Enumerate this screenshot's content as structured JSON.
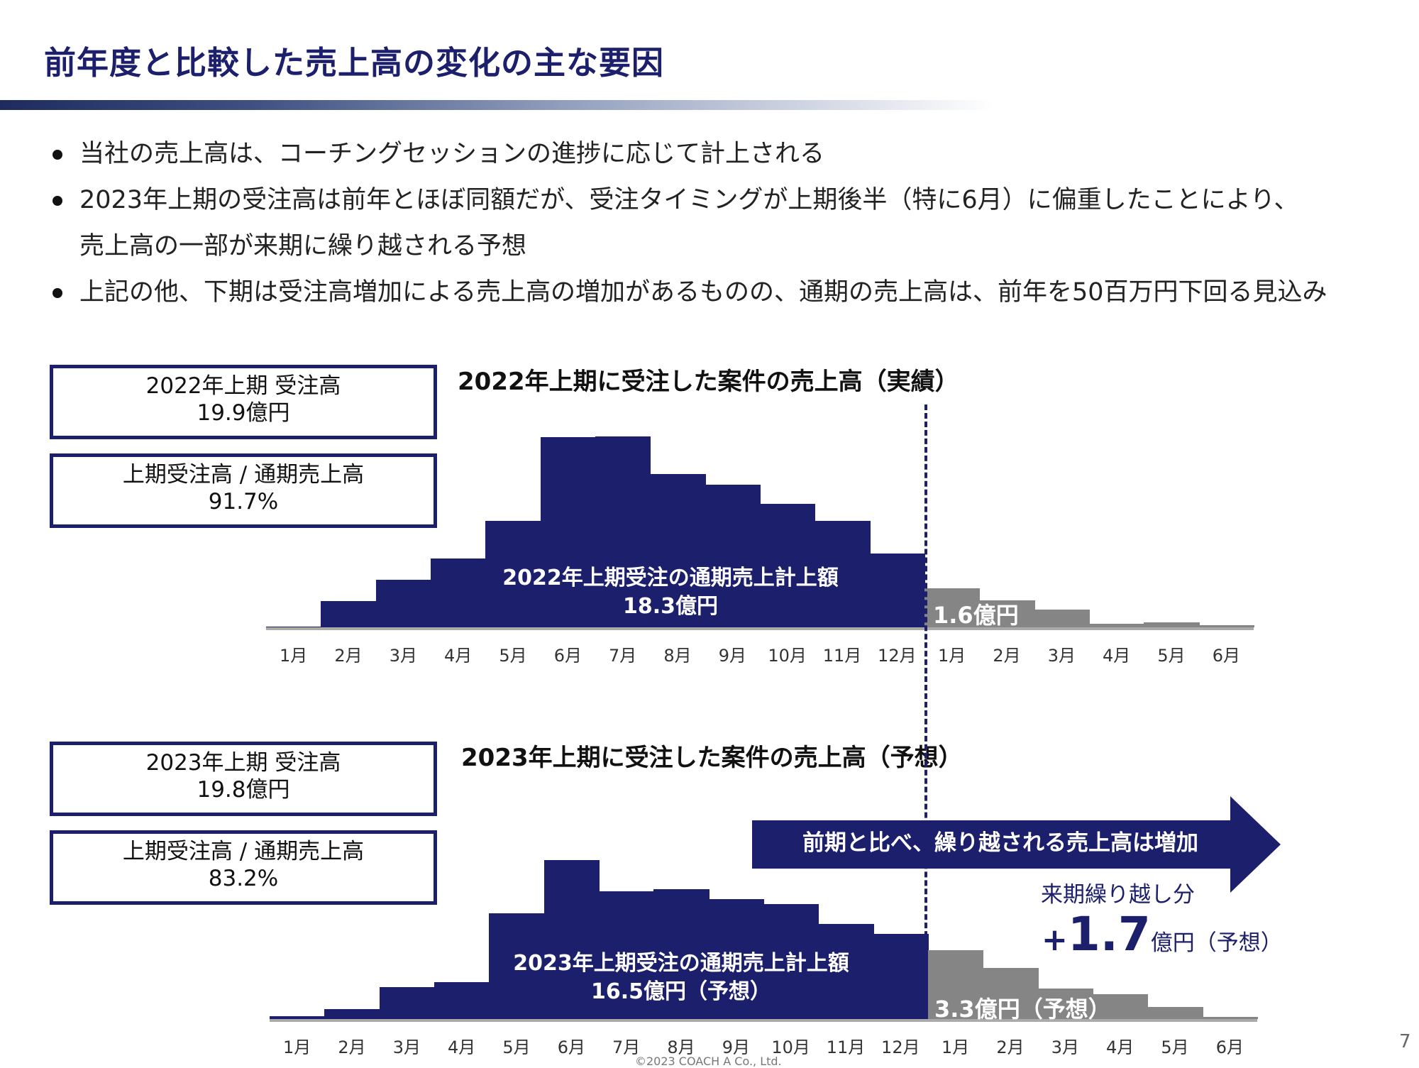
{
  "title": "前年度と比較した売上高の変化の主な要因",
  "bullets": [
    "当社の売上高は、コーチングセッションの進捗に応じて計上される",
    "2023年上期の受注高は前年とほぼ同額だが、受注タイミングが上期後半（特に6月）に偏重したことにより、",
    "売上高の一部が来期に繰り越される予想",
    "上記の他、下期は受注高増加による売上高の増加があるものの、通期の売上高は、前年を50百万円下回る見込み"
  ],
  "months": [
    "1月",
    "2月",
    "3月",
    "4月",
    "5月",
    "6月",
    "7月",
    "8月",
    "9月",
    "10月",
    "11月",
    "12月",
    "1月",
    "2月",
    "3月",
    "4月",
    "5月",
    "6月"
  ],
  "colors": {
    "navy": "#1c1f6b",
    "gray": "#858585",
    "axis": "#aaaaaa"
  },
  "chart1": {
    "title": "2022年上期に受注した案件の売上高（実績）",
    "box1_line1": "2022年上期 受注高",
    "box1_line2": "19.9億円",
    "box2_line1": "上期受注高 / 通期売上高",
    "box2_line2": "91.7%",
    "navy_label_line1": "2022年上期受注の通期売上計上額",
    "navy_label_line2": "18.3億円",
    "gray_label": "1.6億円"
  },
  "chart2": {
    "title": "2023年上期に受注した案件の売上高（予想）",
    "box1_line1": "2023年上期 受注高",
    "box1_line2": "19.8億円",
    "box2_line1": "上期受注高 / 通期売上高",
    "box2_line2": "83.2%",
    "navy_label_line1": "2023年上期受注の通期売上計上額",
    "navy_label_line2": "16.5億円（予想）",
    "gray_label": "3.3億円（予想）"
  },
  "arrow_text": "前期と比べ、繰り越される売上高は増加",
  "carry_over": {
    "label": "来期繰り越し分",
    "plus": "+",
    "value": "1.7",
    "unit": "億円（予想）"
  },
  "page_number": "7",
  "copyright": "©2023  COACH A Co., Ltd.",
  "chart_data": [
    {
      "type": "bar",
      "title": "2022年上期に受注した案件の売上高（実績）",
      "categories": [
        "1月",
        "2月",
        "3月",
        "4月",
        "5月",
        "6月",
        "7月",
        "8月",
        "9月",
        "10月",
        "11月",
        "12月",
        "1月",
        "2月",
        "3月",
        "4月",
        "5月",
        "6月"
      ],
      "values": [
        1,
        37,
        67,
        97,
        150,
        268,
        269,
        216,
        201,
        174,
        150,
        104,
        55,
        38,
        25,
        5,
        7,
        3
      ],
      "bar_color_by_index": [
        "navy",
        "navy",
        "navy",
        "navy",
        "navy",
        "navy",
        "navy",
        "navy",
        "navy",
        "navy",
        "navy",
        "navy",
        "gray",
        "gray",
        "gray",
        "gray",
        "gray",
        "gray"
      ],
      "xlabel": "",
      "ylabel": ""
    },
    {
      "type": "bar",
      "title": "2023年上期に受注した案件の売上高（予想）",
      "categories": [
        "1月",
        "2月",
        "3月",
        "4月",
        "5月",
        "6月",
        "7月",
        "8月",
        "9月",
        "10月",
        "11月",
        "12月",
        "1月",
        "2月",
        "3月",
        "4月",
        "5月",
        "6月"
      ],
      "values": [
        4,
        14,
        45,
        52,
        149,
        224,
        180,
        183,
        169,
        162,
        134,
        120,
        97,
        72,
        43,
        35,
        17,
        3
      ],
      "bar_color_by_index": [
        "navy",
        "navy",
        "navy",
        "navy",
        "navy",
        "navy",
        "navy",
        "navy",
        "navy",
        "navy",
        "navy",
        "navy",
        "gray",
        "gray",
        "gray",
        "gray",
        "gray",
        "gray"
      ],
      "xlabel": "",
      "ylabel": ""
    }
  ]
}
